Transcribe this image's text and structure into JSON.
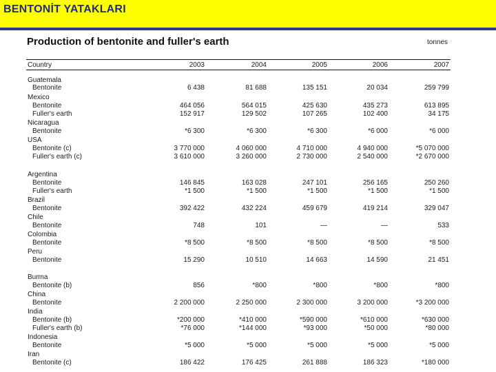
{
  "banner": {
    "title": "BENTONİT YATAKLARI"
  },
  "document": {
    "title": "Production of bentonite and fuller's earth",
    "unit": "tonnes",
    "header": {
      "label": "Country",
      "years": [
        "2003",
        "2004",
        "2005",
        "2006",
        "2007"
      ]
    },
    "rows": [
      {
        "type": "country",
        "label": "Guatemala"
      },
      {
        "type": "item",
        "label": "Bentonite",
        "values": [
          "6 438",
          "81 688",
          "135 151",
          "20 034",
          "259 799"
        ]
      },
      {
        "type": "country",
        "label": "Mexico"
      },
      {
        "type": "item",
        "label": "Bentonite",
        "values": [
          "464 056",
          "564 015",
          "425 630",
          "435 273",
          "613 895"
        ]
      },
      {
        "type": "item",
        "label": "Fuller's earth",
        "values": [
          "152 917",
          "129 502",
          "107 265",
          "102 400",
          "34 175"
        ]
      },
      {
        "type": "country",
        "label": "Nicaragua"
      },
      {
        "type": "item",
        "label": "Bentonite",
        "values": [
          "*6 300",
          "*6 300",
          "*6 300",
          "*6 000",
          "*6 000"
        ]
      },
      {
        "type": "country",
        "label": "USA"
      },
      {
        "type": "item",
        "label": "Bentonite (c)",
        "values": [
          "3 770 000",
          "4 060 000",
          "4 710 000",
          "4 940 000",
          "*5 070 000"
        ]
      },
      {
        "type": "item",
        "label": "Fuller's earth (c)",
        "values": [
          "3 610 000",
          "3 260 000",
          "2 730 000",
          "2 540 000",
          "*2 670 000"
        ]
      },
      {
        "type": "country",
        "label": "Argentina"
      },
      {
        "type": "item",
        "label": "Bentonite",
        "values": [
          "146 845",
          "163 028",
          "247 101",
          "256 165",
          "250 260"
        ]
      },
      {
        "type": "item",
        "label": "Fuller's earth",
        "values": [
          "*1 500",
          "*1 500",
          "*1 500",
          "*1 500",
          "*1 500"
        ]
      },
      {
        "type": "country",
        "label": "Brazil"
      },
      {
        "type": "item",
        "label": "Bentonite",
        "values": [
          "392 422",
          "432 224",
          "459 679",
          "419 214",
          "329 047"
        ]
      },
      {
        "type": "country",
        "label": "Chile"
      },
      {
        "type": "item",
        "label": "Bentonite",
        "values": [
          "748",
          "101",
          "—",
          "—",
          "533"
        ]
      },
      {
        "type": "country",
        "label": "Colombia"
      },
      {
        "type": "item",
        "label": "Bentonite",
        "values": [
          "*8 500",
          "*8 500",
          "*8 500",
          "*8 500",
          "*8 500"
        ]
      },
      {
        "type": "country",
        "label": "Peru"
      },
      {
        "type": "item",
        "label": "Bentonite",
        "values": [
          "15 290",
          "10 510",
          "14 663",
          "14 590",
          "21 451"
        ]
      },
      {
        "type": "country",
        "label": "Burma"
      },
      {
        "type": "item",
        "label": "Bentonite (b)",
        "values": [
          "856",
          "*800",
          "*800",
          "*800",
          "*800"
        ]
      },
      {
        "type": "country",
        "label": "China"
      },
      {
        "type": "item",
        "label": "Bentonite",
        "values": [
          "2 200 000",
          "2 250 000",
          "2 300 000",
          "3 200 000",
          "*3 200 000"
        ]
      },
      {
        "type": "country",
        "label": "India"
      },
      {
        "type": "item",
        "label": "Bentonite (b)",
        "values": [
          "*200 000",
          "*410 000",
          "*590 000",
          "*610 000",
          "*630 000"
        ]
      },
      {
        "type": "item",
        "label": "Fuller's earth (b)",
        "values": [
          "*76 000",
          "*144 000",
          "*93 000",
          "*50 000",
          "*80 000"
        ]
      },
      {
        "type": "country",
        "label": "Indonesia"
      },
      {
        "type": "item",
        "label": "Bentonite",
        "values": [
          "*5 000",
          "*5 000",
          "*5 000",
          "*5 000",
          "*5 000"
        ]
      },
      {
        "type": "country",
        "label": "Iran"
      },
      {
        "type": "item",
        "label": "Bentonite (c)",
        "values": [
          "186 422",
          "176 425",
          "261 888",
          "186 323",
          "*180 000"
        ]
      }
    ]
  }
}
